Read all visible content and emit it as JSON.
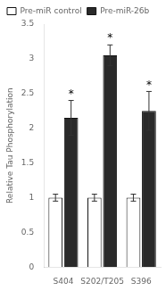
{
  "chart_data": {
    "type": "bar",
    "categories": [
      "S404",
      "S202/T205",
      "S396"
    ],
    "series": [
      {
        "name": "Pre-miR control",
        "color": "#ffffff",
        "values": [
          1.0,
          1.0,
          1.0
        ],
        "errors": [
          0.05,
          0.05,
          0.05
        ]
      },
      {
        "name": "Pre-miR-26b",
        "color": "#2a2a2a",
        "values": [
          2.15,
          3.05,
          2.25
        ],
        "errors": [
          0.25,
          0.15,
          0.28
        ],
        "annotations": [
          "*",
          "*",
          "*"
        ]
      }
    ],
    "y_label": "Relative Tau Phosphorylation",
    "ylim": [
      0,
      3.5
    ],
    "yticks": [
      0,
      0.5,
      1,
      1.5,
      2,
      2.5,
      3,
      3.5
    ],
    "grid": false,
    "legend": "upper left"
  }
}
